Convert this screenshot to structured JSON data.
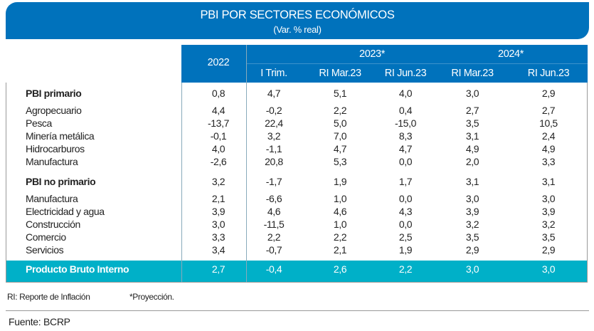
{
  "title": "PBI POR SECTORES ECONÓMICOS",
  "subtitle": "(Var. % real)",
  "header": {
    "col_2022": "2022",
    "group_2023": "2023*",
    "group_2024": "2024*",
    "subcols": [
      "I Trim.",
      "RI Mar.23",
      "RI Jun.23",
      "RI Mar.23",
      "RI Jun.23"
    ]
  },
  "rows": [
    {
      "label": "PBI primario",
      "bold": true,
      "values": [
        "0,8",
        "4,7",
        "5,1",
        "4,0",
        "3,0",
        "2,9"
      ]
    },
    {
      "label": "Agropecuario",
      "values": [
        "4,4",
        "-0,2",
        "2,2",
        "0,4",
        "2,7",
        "2,7"
      ]
    },
    {
      "label": "Pesca",
      "values": [
        "-13,7",
        "22,4",
        "5,0",
        "-15,0",
        "3,5",
        "10,5"
      ]
    },
    {
      "label": "Minería metálica",
      "values": [
        "-0,1",
        "3,2",
        "7,0",
        "8,3",
        "3,1",
        "2,4"
      ]
    },
    {
      "label": "Hidrocarburos",
      "values": [
        "4,0",
        "-1,1",
        "4,7",
        "4,7",
        "4,9",
        "4,9"
      ]
    },
    {
      "label": "Manufactura",
      "values": [
        "-2,6",
        "20,8",
        "5,3",
        "0,0",
        "2,0",
        "3,3"
      ]
    },
    {
      "label": "PBI no primario",
      "bold": true,
      "values": [
        "3,2",
        "-1,7",
        "1,9",
        "1,7",
        "3,1",
        "3,1"
      ]
    },
    {
      "label": "Manufactura",
      "values": [
        "2,1",
        "-6,6",
        "1,0",
        "0,0",
        "3,0",
        "3,0"
      ]
    },
    {
      "label": "Electricidad y agua",
      "values": [
        "3,9",
        "4,6",
        "4,6",
        "4,3",
        "3,9",
        "3,9"
      ]
    },
    {
      "label": "Construcción",
      "values": [
        "3,0",
        "-11,5",
        "1,0",
        "0,0",
        "3,2",
        "3,2"
      ]
    },
    {
      "label": "Comercio",
      "values": [
        "3,3",
        "2,2",
        "2,2",
        "2,5",
        "3,5",
        "3,5"
      ]
    },
    {
      "label": "Servicios",
      "values": [
        "3,4",
        "-0,7",
        "2,1",
        "1,9",
        "2,9",
        "2,9"
      ]
    },
    {
      "label": "Producto Bruto Interno",
      "bold": true,
      "total": true,
      "values": [
        "2,7",
        "-0,4",
        "2,6",
        "2,2",
        "3,0",
        "3,0"
      ]
    }
  ],
  "notes": {
    "ri": "RI: Reporte de Inflación",
    "proj": "*Proyección."
  },
  "source": "Fuente: BCRP",
  "colors": {
    "header_blue": "#0072bc",
    "total_teal": "#00b0c8"
  }
}
